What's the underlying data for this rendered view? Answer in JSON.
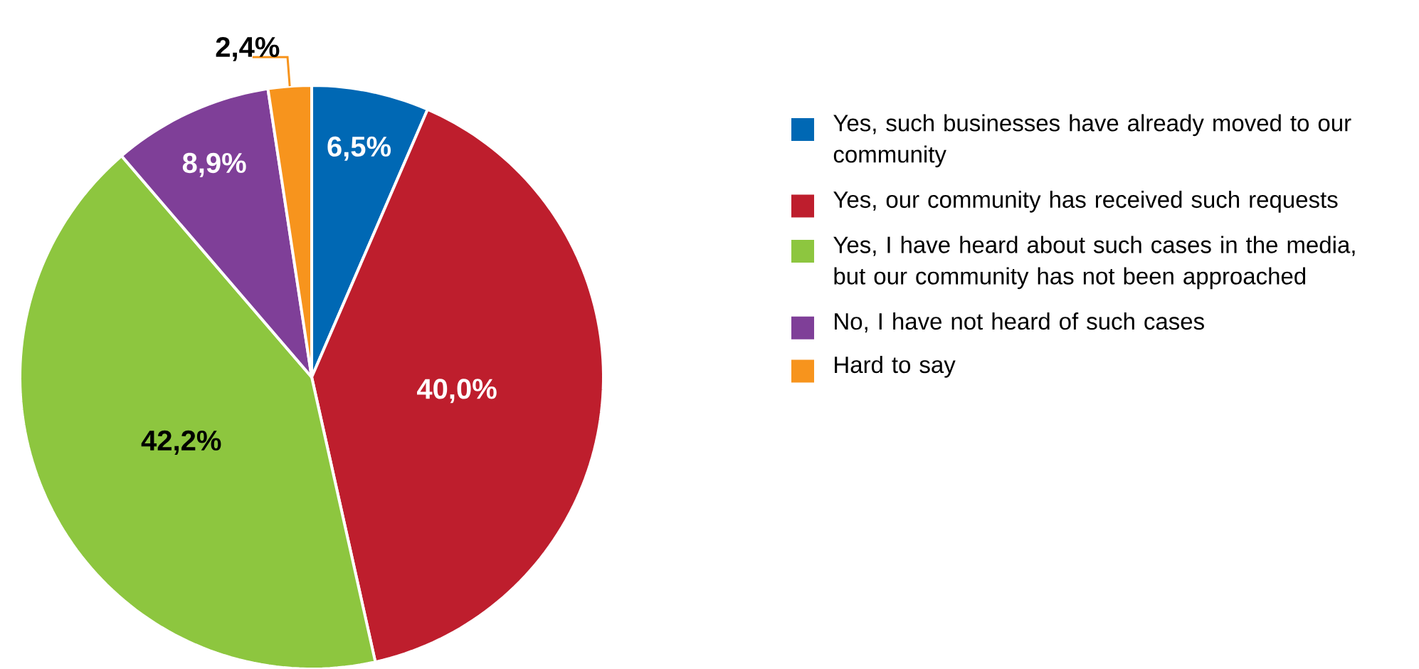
{
  "chart_data": {
    "type": "pie",
    "categories": [
      "Yes, such businesses have already moved to our community",
      "Yes, our community has received such requests",
      "Yes, I have heard about such cases in the media, but our community has not been approached",
      "No, I have not heard of such cases",
      "Hard to say"
    ],
    "values": [
      6.5,
      40.0,
      42.2,
      8.9,
      2.4
    ],
    "colors": [
      "#0068b4",
      "#be1e2d",
      "#8dc63f",
      "#7f3f98",
      "#f7941d"
    ],
    "value_labels": [
      "6,5%",
      "40,0%",
      "42,2%",
      "8,9%",
      "2,4%"
    ],
    "legend": "right"
  }
}
